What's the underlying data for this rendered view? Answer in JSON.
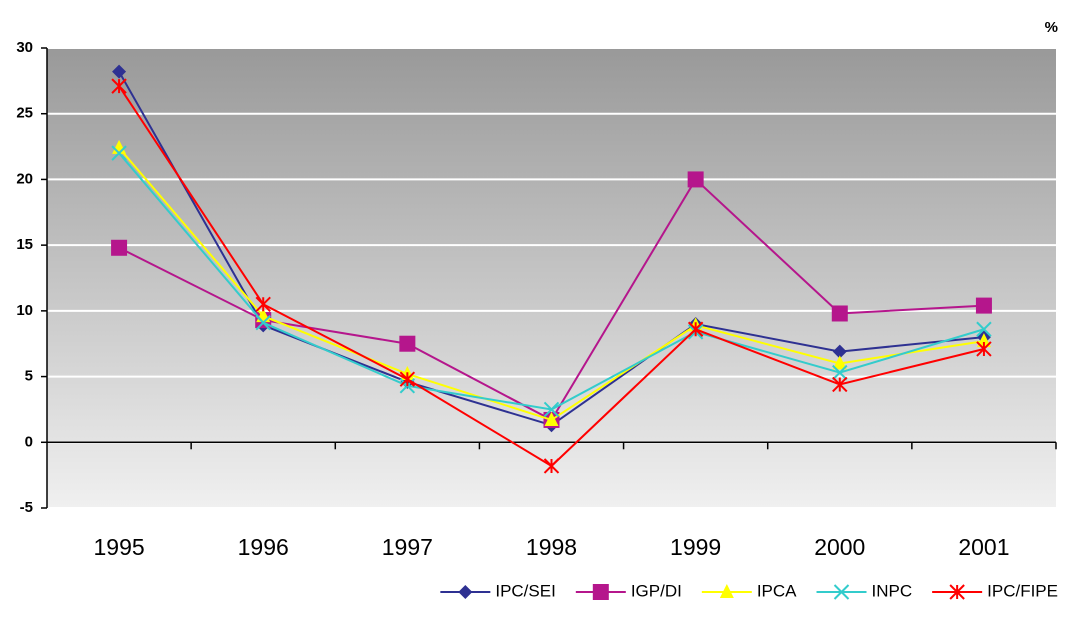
{
  "chart_data": {
    "type": "line",
    "unit_label": "%",
    "categories": [
      "1995",
      "1996",
      "1997",
      "1998",
      "1999",
      "2000",
      "2001"
    ],
    "series": [
      {
        "name": "IPC/SEI",
        "color": "#2E3192",
        "marker": "diamond",
        "values": [
          28.2,
          8.9,
          4.6,
          1.3,
          9.0,
          6.9,
          8.0
        ]
      },
      {
        "name": "IGP/DI",
        "color": "#B5168C",
        "marker": "square",
        "values": [
          14.8,
          9.3,
          7.5,
          1.7,
          20.0,
          9.8,
          10.4
        ]
      },
      {
        "name": "IPCA",
        "color": "#FFFF00",
        "marker": "triangle",
        "values": [
          22.4,
          9.6,
          5.2,
          1.7,
          8.9,
          6.0,
          7.7
        ]
      },
      {
        "name": "INPC",
        "color": "#33CCCC",
        "marker": "x",
        "values": [
          22.0,
          9.1,
          4.3,
          2.5,
          8.4,
          5.3,
          8.6
        ]
      },
      {
        "name": "IPC/FIPE",
        "color": "#FF0000",
        "marker": "star",
        "values": [
          27.1,
          10.5,
          4.8,
          -1.8,
          8.6,
          4.4,
          7.1
        ]
      }
    ],
    "ylim": [
      -5,
      30
    ],
    "yticks": [
      -5,
      0,
      5,
      10,
      15,
      20,
      25,
      30
    ],
    "grid": true,
    "legend": "bottom-right"
  }
}
